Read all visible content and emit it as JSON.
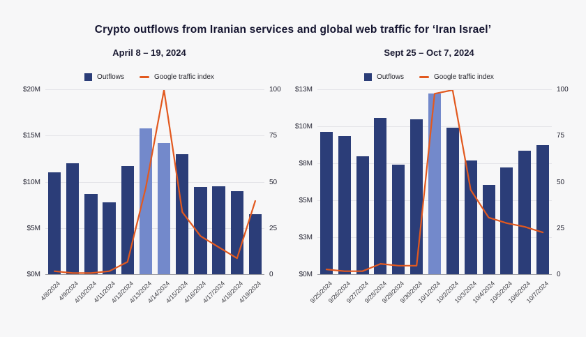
{
  "title": "Crypto outflows from Iranian services and global web traffic for ‘Iran Israel’",
  "colors": {
    "bar": "#2b3d78",
    "bar_highlight": "#7389cb",
    "line": "#e2591f",
    "background": "#f7f7f8",
    "grid": "#e4e4e8",
    "axis_line": "#9b9ba1"
  },
  "chart_data": [
    {
      "type": "bar+line",
      "title": "April 8 – 19, 2024",
      "legend": [
        {
          "label": "Outflows",
          "marker": "square"
        },
        {
          "label": "Google traffic index",
          "marker": "dash"
        }
      ],
      "categories": [
        "4/8/2024",
        "4/9/2024",
        "4/10/2024",
        "4/11/2024",
        "4/12/2024",
        "4/13/2024",
        "4/14/2024",
        "4/15/2024",
        "4/16/2024",
        "4/17/2024",
        "4/18/2024",
        "4/19/2024"
      ],
      "series": [
        {
          "name": "Outflows",
          "type": "bar",
          "axis": "left",
          "unit": "$M",
          "values": [
            11.0,
            12.0,
            8.7,
            7.8,
            11.7,
            15.8,
            14.2,
            13.0,
            9.4,
            9.5,
            9.0,
            6.5
          ],
          "highlight_indices": [
            5,
            6
          ]
        },
        {
          "name": "Google traffic index",
          "type": "line",
          "axis": "right",
          "values": [
            2,
            1,
            1,
            2,
            7,
            47,
            100,
            34,
            21,
            15,
            9,
            40
          ]
        }
      ],
      "y_left": {
        "ticks": [
          "$0M",
          "$5M",
          "$10M",
          "$15M",
          "$20M"
        ],
        "min": 0,
        "max": 20
      },
      "y_right": {
        "ticks": [
          "0",
          "25",
          "50",
          "75",
          "100"
        ],
        "min": 0,
        "max": 100
      },
      "grid": true,
      "legend_position": "top"
    },
    {
      "type": "bar+line",
      "title": "Sept 25 – Oct 7, 2024",
      "legend": [
        {
          "label": "Outflows",
          "marker": "square"
        },
        {
          "label": "Google traffic index",
          "marker": "dash"
        }
      ],
      "categories": [
        "9/25/2024",
        "9/26/2024",
        "9/27/2024",
        "9/28/2024",
        "9/29/2024",
        "9/30/2024",
        "10/1/2024",
        "10/2/2024",
        "10/3/2024",
        "10/4/2024",
        "10/5/2024",
        "10/6/2024",
        "10/7/2024"
      ],
      "series": [
        {
          "name": "Outflows",
          "type": "bar",
          "axis": "left",
          "unit": "$M",
          "values": [
            10.0,
            9.7,
            8.3,
            11.0,
            7.7,
            10.9,
            12.7,
            10.3,
            8.0,
            6.3,
            7.5,
            8.7,
            9.1
          ],
          "highlight_indices": [
            6
          ]
        },
        {
          "name": "Google traffic index",
          "type": "line",
          "axis": "right",
          "values": [
            3,
            2,
            2,
            6,
            5,
            5,
            98,
            100,
            46,
            31,
            28,
            26,
            23
          ]
        }
      ],
      "y_left": {
        "ticks": [
          "$0M",
          "$3M",
          "$5M",
          "$8M",
          "$10M",
          "$13M"
        ],
        "min": 0,
        "max": 13
      },
      "y_right": {
        "ticks": [
          "0",
          "25",
          "50",
          "75",
          "100"
        ],
        "min": 0,
        "max": 100
      },
      "grid": true,
      "legend_position": "top"
    }
  ]
}
